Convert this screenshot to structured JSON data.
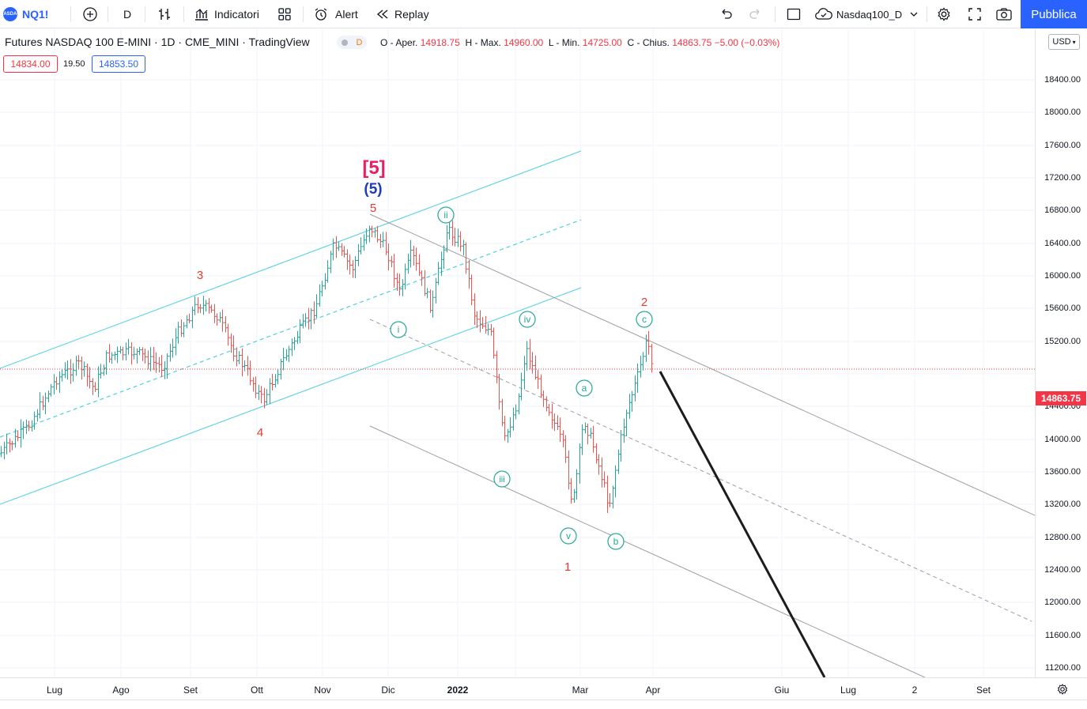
{
  "toolbar": {
    "symbol": "NQ1!",
    "symbol_logo_text": "NASDAQ",
    "interval": "D",
    "indicators_label": "Indicatori",
    "alert_label": "Alert",
    "replay_label": "Replay",
    "layout_name": "Nasdaq100_D",
    "publish_label": "Pubblica"
  },
  "legend": {
    "title": "Futures NASDAQ 100 E-MINI · 1D · CME_MINI · TradingView",
    "badge": "D",
    "open_label": "O - Aper.",
    "open": "14918.75",
    "high_label": "H - Max.",
    "high": "14960.00",
    "low_label": "L - Min.",
    "low": "14725.00",
    "close_label": "C - Chius.",
    "close": "14863.75",
    "change": "−5.00 (−0.03%)",
    "bid": "14834.00",
    "spread": "19.50",
    "ask": "14853.50"
  },
  "price_axis": {
    "currency": "USD",
    "last_price": "14863.75",
    "labels": [
      "18400.00",
      "18000.00",
      "17600.00",
      "17200.00",
      "16800.00",
      "16400.00",
      "16000.00",
      "15600.00",
      "15200.00",
      "14400.00",
      "14000.00",
      "13600.00",
      "13200.00",
      "12800.00",
      "12400.00",
      "12000.00",
      "11600.00",
      "11200.00"
    ]
  },
  "time_axis": {
    "labels": [
      "Lug",
      "Ago",
      "Set",
      "Ott",
      "Nov",
      "Dic",
      "2022",
      "Mar",
      "Apr",
      "Giu",
      "Lug",
      "2",
      "Set"
    ]
  },
  "colors": {
    "up": "#26a69a",
    "down": "#ef5350",
    "channel": "#4dd0e1",
    "down_channel": "#9e9e9e",
    "wave_red": "#e53935",
    "wave_pink": "#e91e63",
    "wave_blue": "#1e3fb4",
    "wave_teal": "#26a69a",
    "projection": "#1c1c1c"
  },
  "wave_labels": {
    "primary5": "[5]",
    "intermediate5": "(5)",
    "w3": "3",
    "w4": "4",
    "w5": "5",
    "w1": "1",
    "w2": "2",
    "wi": "i",
    "wii": "ii",
    "wiii": "iii",
    "wiv": "iv",
    "wv": "v",
    "wa": "a",
    "wb": "b",
    "wc": "c"
  }
}
